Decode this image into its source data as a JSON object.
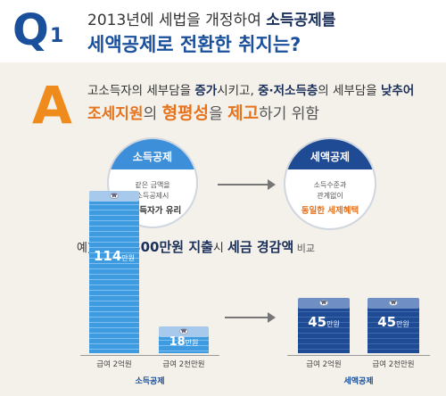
{
  "question": {
    "mark": "Q",
    "number": "1",
    "line1_a": "2013년에 세법을 개정하여 ",
    "line1_b": "소득공제를",
    "line2": "세액공제로 전환한 취지는?"
  },
  "answer": {
    "mark": "A",
    "line1_a": "고소득자의 세부담을 ",
    "line1_b": "증가",
    "line1_c": "시키고, ",
    "line1_d": "중·저소득층",
    "line1_e": "의 세부담을 ",
    "line1_f": "낮추어",
    "line2_a": "조세지원",
    "line2_b": "의 ",
    "line2_c": "형평성",
    "line2_d": "을 ",
    "line2_e": "제고",
    "line2_f": "하기 위함"
  },
  "comparison": {
    "left": {
      "title": "소득공제",
      "text1": "같은 금액을",
      "text2": "소득공제시",
      "text3": "고소득자가 유리"
    },
    "right": {
      "title": "세액공제",
      "text1": "소득수준과",
      "text2": "관계없이",
      "text3": "동일한 세제혜택"
    }
  },
  "example": {
    "prefix": "예) 교육비 ",
    "amount": "300만원 지출",
    "mid": "시 ",
    "highlight": "세금 경감액",
    "suffix": " 비교"
  },
  "bars": {
    "coin_symbol": "₩",
    "unit": "만원",
    "b1": {
      "value": "114",
      "label": "급여 2억원"
    },
    "b2": {
      "value": "18",
      "label": "급여 2천만원"
    },
    "b3": {
      "value": "45",
      "label": "급여 2억원"
    },
    "b4": {
      "value": "45",
      "label": "급여 2천만원"
    },
    "group_left": "소득공제",
    "group_right": "세액공제"
  }
}
